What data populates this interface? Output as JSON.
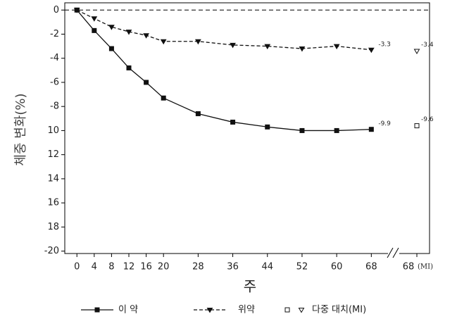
{
  "chart_data": {
    "type": "line",
    "y_label": "체중 변화(%)",
    "x_label": "주",
    "x": [
      0,
      4,
      8,
      12,
      16,
      20,
      28,
      36,
      44,
      52,
      60,
      68
    ],
    "xlim": [
      -2.8,
      72.5
    ],
    "xticks": [
      0,
      4,
      8,
      12,
      16,
      20,
      28,
      36,
      44,
      52,
      60,
      68
    ],
    "ylim": [
      0.6,
      -20.2
    ],
    "yticks": [
      0,
      -2,
      -4,
      -6,
      -8,
      {
        "value": -10,
        "label": "10"
      },
      {
        "value": -12,
        "label": "12"
      },
      {
        "value": -14,
        "label": "14"
      },
      {
        "value": -16,
        "label": "16"
      },
      {
        "value": -18,
        "label": "18"
      },
      -20
    ],
    "reference_line": 0,
    "series": [
      {
        "name": "이 약",
        "color": "#111111",
        "line_style": "solid",
        "marker": "square",
        "values": [
          0,
          -1.7,
          -3.2,
          -4.8,
          -6.0,
          -7.3,
          -8.6,
          -9.3,
          -9.7,
          -10.0,
          -10.0,
          -9.9
        ],
        "end_label": -9.9
      },
      {
        "name": "위약",
        "color": "#111111",
        "line_style": "dashed",
        "marker": "triangle",
        "values": [
          0,
          -0.7,
          -1.4,
          -1.8,
          -2.1,
          -2.6,
          -2.6,
          -2.9,
          -3.0,
          -3.2,
          -3.0,
          -3.3
        ],
        "end_label": -3.3
      }
    ],
    "mi": {
      "name": "다중 대치(MI)",
      "tick": "68",
      "tick_note": "(MI)",
      "values": [
        -9.6,
        -3.4
      ]
    }
  }
}
